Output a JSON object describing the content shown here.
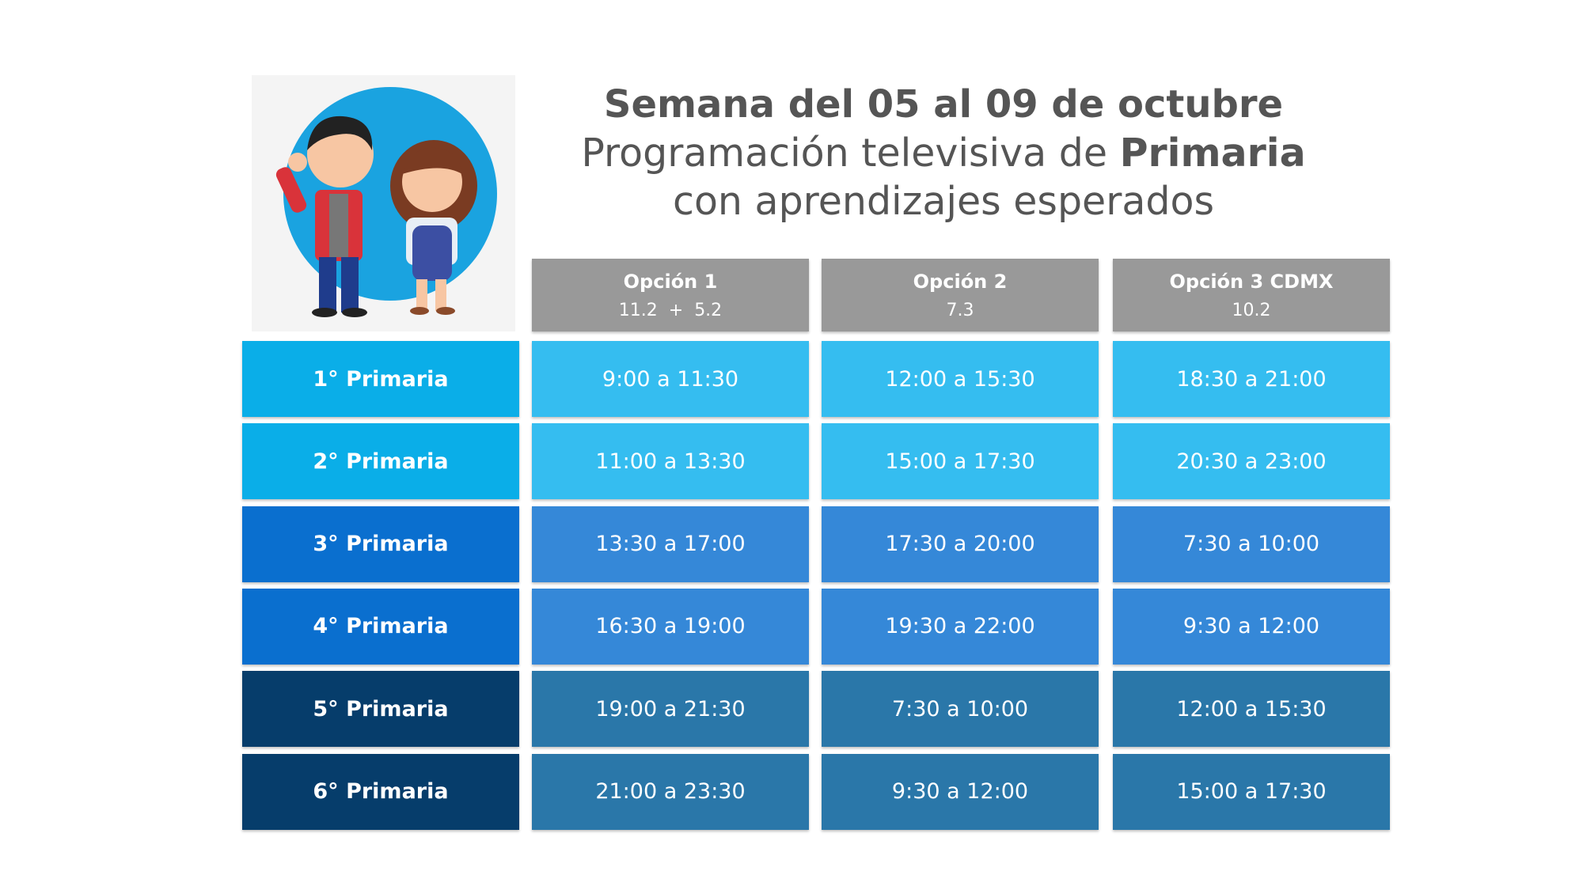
{
  "header": {
    "title": "Semana del 05 al 09 de octubre",
    "subtitle_prefix": "Programación televisiva de",
    "subtitle_bold": "Primaria",
    "subtitle_line2": "con aprendizajes esperados"
  },
  "table": {
    "columns": [
      {
        "name": "Opción 1",
        "channel": "11.2  +  5.2"
      },
      {
        "name": "Opción 2",
        "channel": "7.3"
      },
      {
        "name": "Opción 3 CDMX",
        "channel": "10.2"
      }
    ],
    "rows": [
      {
        "label": "1° Primaria",
        "cells": [
          "9:00 a 11:30",
          "12:00 a 15:30",
          "18:30 a 21:00"
        ]
      },
      {
        "label": "2° Primaria",
        "cells": [
          "11:00 a 13:30",
          "15:00 a 17:30",
          "20:30 a 23:00"
        ]
      },
      {
        "label": "3° Primaria",
        "cells": [
          "13:30 a 17:00",
          "17:30 a 20:00",
          "7:30 a 10:00"
        ]
      },
      {
        "label": "4° Primaria",
        "cells": [
          "16:30 a 19:00",
          "19:30 a 22:00",
          "9:30 a 12:00"
        ]
      },
      {
        "label": "5° Primaria",
        "cells": [
          "19:00 a 21:30",
          "7:30 a 10:00",
          "12:00 a 15:30"
        ]
      },
      {
        "label": "6° Primaria",
        "cells": [
          "21:00 a 23:30",
          "9:30 a 12:00",
          "15:00 a 17:30"
        ]
      }
    ]
  }
}
